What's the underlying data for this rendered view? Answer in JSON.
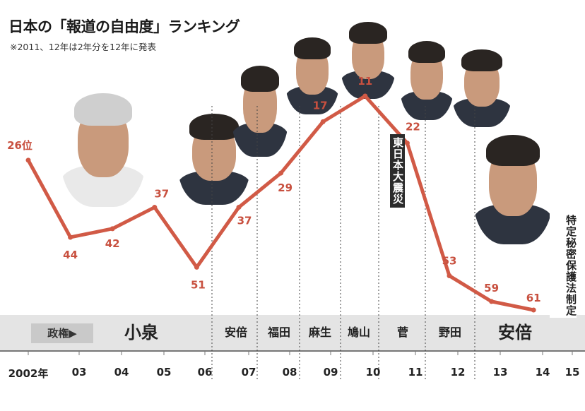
{
  "header": {
    "title": "日本の「報道の自由度」ランキング",
    "note": "※2011、12年は2年分を12年に発表"
  },
  "admin_row": {
    "label": "政権▶",
    "names": [
      "小泉",
      "安倍",
      "福田",
      "麻生",
      "鳩山",
      "菅",
      "野田",
      "安倍"
    ]
  },
  "events": {
    "earthquake": "東日本大震災",
    "secrecy_law": "特定秘密保護法制定"
  },
  "colors": {
    "line": "#d15a46",
    "label": "#c8503f",
    "admin_bg": "#e4e4e4",
    "event_bg": "#2b2b2b"
  },
  "chart_data": {
    "type": "line",
    "title": "日本の「報道の自由度」ランキング",
    "xlabel": "",
    "ylabel": "",
    "y_inverted": true,
    "tick_labels": [
      "2002年",
      "03",
      "04",
      "05",
      "06",
      "07",
      "08",
      "09",
      "10",
      "11",
      "12",
      "13",
      "14",
      "15"
    ],
    "series": [
      {
        "values": [
          26,
          44,
          42,
          37,
          51,
          37,
          29,
          17,
          11,
          22,
          53,
          59,
          61
        ],
        "labels": [
          "26位",
          "44",
          "42",
          "37",
          "51",
          "37",
          "29",
          "17",
          "11",
          "22",
          "53",
          "59",
          "61"
        ]
      }
    ]
  },
  "photos": [
    {
      "name": "koizumi-photo",
      "style": "grey"
    },
    {
      "name": "abe-photo-1",
      "style": "dark"
    },
    {
      "name": "fukuda-photo",
      "style": "dark"
    },
    {
      "name": "aso-photo",
      "style": "dark"
    },
    {
      "name": "hatoyama-photo",
      "style": "dark"
    },
    {
      "name": "kan-photo",
      "style": "dark"
    },
    {
      "name": "noda-photo",
      "style": "dark"
    },
    {
      "name": "abe-photo-2",
      "style": "dark"
    }
  ]
}
